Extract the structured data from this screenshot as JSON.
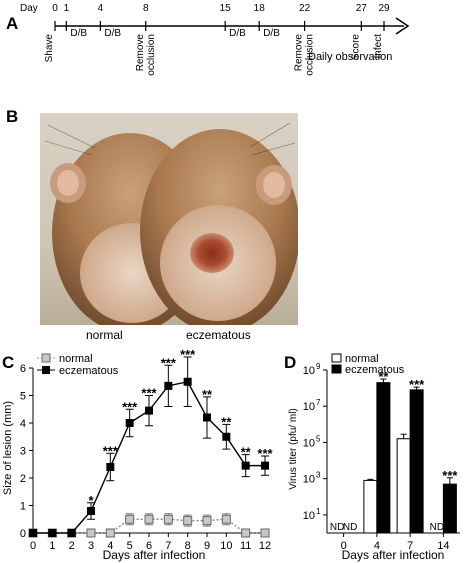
{
  "panels": {
    "a": {
      "letter": "A",
      "day_prefix": "Day",
      "days": [
        "0",
        "1",
        "4",
        "8",
        "15",
        "18",
        "22",
        "27",
        "29"
      ],
      "events": [
        {
          "day": 0,
          "label": "Shave"
        },
        {
          "day": 1,
          "label": "D/B"
        },
        {
          "day": 4,
          "label": "D/B"
        },
        {
          "day": 8,
          "label": "Remove occlusion"
        },
        {
          "day": 15,
          "label": "D/B"
        },
        {
          "day": 18,
          "label": "D/B"
        },
        {
          "day": 22,
          "label": "Remove occlusion"
        },
        {
          "day": 27,
          "label": "Score"
        },
        {
          "day": 29,
          "label": "Infect"
        }
      ],
      "tail_label": "Daily observation"
    },
    "b": {
      "letter": "B",
      "label_left": "normal",
      "label_right": "eczematous"
    }
  },
  "chart_data": [
    {
      "letter": "C",
      "type": "line",
      "xlabel": "Days after infection",
      "ylabel": "Size of lesion (mm)",
      "xlim": [
        0,
        12
      ],
      "ylim": [
        0,
        6
      ],
      "xticks": [
        "0",
        "1",
        "2",
        "3",
        "4",
        "5",
        "6",
        "7",
        "8",
        "9",
        "10",
        "11",
        "12"
      ],
      "yticks": [
        "0",
        "1",
        "2",
        "3",
        "4",
        "5",
        "6"
      ],
      "legend_position": "top-left",
      "series": [
        {
          "name": "normal",
          "color": "#aaaaaa",
          "style": "dotted",
          "marker": "square-open-gray",
          "x": [
            0,
            1,
            2,
            3,
            4,
            5,
            6,
            7,
            8,
            9,
            10,
            11,
            12
          ],
          "y": [
            0,
            0,
            0,
            0,
            0,
            0.5,
            0.5,
            0.5,
            0.45,
            0.45,
            0.5,
            0,
            0
          ],
          "err": [
            0,
            0,
            0,
            0,
            0,
            0.2,
            0.2,
            0.2,
            0.2,
            0.2,
            0.2,
            0,
            0
          ]
        },
        {
          "name": "eczematous",
          "color": "#000000",
          "style": "solid",
          "marker": "square-filled-black",
          "x": [
            0,
            1,
            2,
            3,
            4,
            5,
            6,
            7,
            8,
            9,
            10,
            11,
            12
          ],
          "y": [
            0,
            0,
            0,
            0.8,
            2.4,
            4.0,
            4.45,
            5.35,
            5.5,
            4.2,
            3.5,
            2.45,
            2.45
          ],
          "err": [
            0,
            0,
            0,
            0.3,
            0.5,
            0.5,
            0.55,
            0.75,
            0.9,
            0.75,
            0.45,
            0.4,
            0.35
          ],
          "sig": [
            "",
            "",
            "",
            "*",
            "***",
            "***",
            "***",
            "***",
            "***",
            "**",
            "**",
            "**",
            "***"
          ]
        }
      ]
    },
    {
      "letter": "D",
      "type": "bar",
      "xlabel": "Days after infection",
      "ylabel": "Virus titer (pfu/ ml)",
      "yscale": "log",
      "ylim": [
        1,
        1000000000
      ],
      "ytick_exponents": [
        "1",
        "3",
        "5",
        "7",
        "9"
      ],
      "ytick_base": "10",
      "categories": [
        "0",
        "4",
        "7",
        "14"
      ],
      "legend_position": "top-left",
      "series": [
        {
          "name": "normal",
          "color": "#ffffff",
          "values": [
            null,
            800,
            160000,
            null
          ],
          "err_log": [
            0,
            0.06,
            0.25,
            0
          ],
          "nd": [
            "ND",
            "",
            "",
            "ND"
          ],
          "sig": [
            "",
            "",
            "",
            ""
          ]
        },
        {
          "name": "eczematous",
          "color": "#000000",
          "values": [
            null,
            200000000,
            80000000,
            500
          ],
          "err_log": [
            0,
            0.2,
            0.15,
            0.35
          ],
          "nd": [
            "ND",
            "",
            "",
            ""
          ],
          "sig": [
            "",
            "**",
            "***",
            "***"
          ]
        }
      ]
    }
  ]
}
